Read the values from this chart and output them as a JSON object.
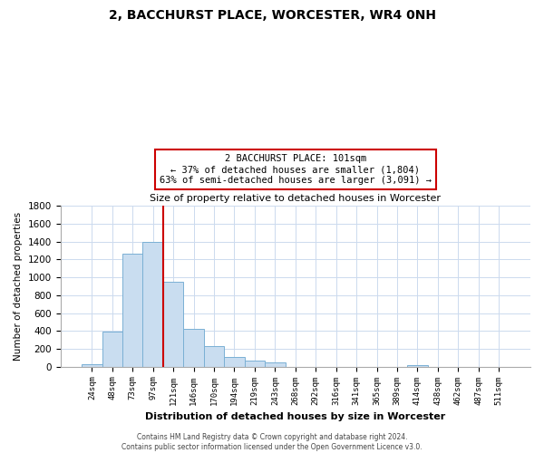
{
  "title": "2, BACCHURST PLACE, WORCESTER, WR4 0NH",
  "subtitle": "Size of property relative to detached houses in Worcester",
  "xlabel": "Distribution of detached houses by size in Worcester",
  "ylabel": "Number of detached properties",
  "bar_labels": [
    "24sqm",
    "48sqm",
    "73sqm",
    "97sqm",
    "121sqm",
    "146sqm",
    "170sqm",
    "194sqm",
    "219sqm",
    "243sqm",
    "268sqm",
    "292sqm",
    "316sqm",
    "341sqm",
    "365sqm",
    "389sqm",
    "414sqm",
    "438sqm",
    "462sqm",
    "487sqm",
    "511sqm"
  ],
  "bar_values": [
    25,
    390,
    1265,
    1400,
    950,
    420,
    235,
    110,
    70,
    50,
    0,
    0,
    0,
    0,
    0,
    0,
    15,
    0,
    0,
    0,
    0
  ],
  "bar_color": "#c9ddf0",
  "bar_edge_color": "#7ab0d4",
  "vline_x": 3.5,
  "vline_color": "#cc0000",
  "ylim": [
    0,
    1800
  ],
  "yticks": [
    0,
    200,
    400,
    600,
    800,
    1000,
    1200,
    1400,
    1600,
    1800
  ],
  "annotation_title": "2 BACCHURST PLACE: 101sqm",
  "annotation_line1": "← 37% of detached houses are smaller (1,804)",
  "annotation_line2": "63% of semi-detached houses are larger (3,091) →",
  "footer_line1": "Contains HM Land Registry data © Crown copyright and database right 2024.",
  "footer_line2": "Contains public sector information licensed under the Open Government Licence v3.0.",
  "bg_color": "#ffffff",
  "grid_color": "#ccdaee"
}
